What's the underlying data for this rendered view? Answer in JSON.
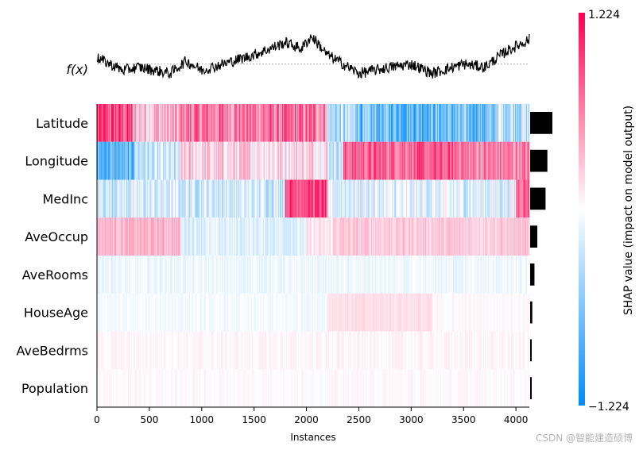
{
  "chart_data": {
    "type": "heatmap",
    "title": "",
    "xlabel": "Instances",
    "ylabel": "",
    "xlim": [
      0,
      4128
    ],
    "x_ticks": [
      0,
      500,
      1000,
      1500,
      2000,
      2500,
      3000,
      3500,
      4000
    ],
    "n_instances": 4128,
    "fx_label": "f(x)",
    "colorbar": {
      "label": "SHAP value (impact on model output)",
      "max_label": "1.224",
      "min_label": "−1.224",
      "vmin": -1.224,
      "vmax": 1.224,
      "low_color": "#008bfb",
      "high_color": "#ff0052"
    },
    "features": [
      {
        "name": "Latitude",
        "mean_abs_shap": 0.62,
        "segments": [
          [
            0,
            330,
            0.85
          ],
          [
            330,
            800,
            0.35
          ],
          [
            800,
            2200,
            0.65
          ],
          [
            2200,
            2500,
            -0.4
          ],
          [
            2500,
            3800,
            -0.7
          ],
          [
            3800,
            4128,
            -0.3
          ]
        ]
      },
      {
        "name": "Longitude",
        "mean_abs_shap": 0.48,
        "segments": [
          [
            0,
            350,
            -0.8
          ],
          [
            350,
            800,
            -0.3
          ],
          [
            800,
            2200,
            0.2
          ],
          [
            2200,
            2350,
            -0.2
          ],
          [
            2350,
            3500,
            0.75
          ],
          [
            3500,
            4128,
            0.6
          ]
        ]
      },
      {
        "name": "MedInc",
        "mean_abs_shap": 0.43,
        "segments": [
          [
            0,
            1800,
            -0.2
          ],
          [
            1800,
            2200,
            0.9
          ],
          [
            2200,
            4000,
            -0.15
          ],
          [
            4000,
            4128,
            0.8
          ]
        ]
      },
      {
        "name": "AveOccup",
        "mean_abs_shap": 0.2,
        "segments": [
          [
            0,
            800,
            0.35
          ],
          [
            800,
            2000,
            -0.15
          ],
          [
            2000,
            2250,
            0.1
          ],
          [
            2250,
            4128,
            0.25
          ]
        ]
      },
      {
        "name": "AveRooms",
        "mean_abs_shap": 0.12,
        "segments": [
          [
            0,
            4128,
            -0.08
          ]
        ]
      },
      {
        "name": "HouseAge",
        "mean_abs_shap": 0.06,
        "segments": [
          [
            0,
            2200,
            -0.05
          ],
          [
            2200,
            3200,
            0.15
          ],
          [
            3200,
            4128,
            0.02
          ]
        ]
      },
      {
        "name": "AveBedrms",
        "mean_abs_shap": 0.03,
        "segments": [
          [
            0,
            4128,
            0.04
          ]
        ]
      },
      {
        "name": "Population",
        "mean_abs_shap": 0.02,
        "segments": [
          [
            0,
            4128,
            0.02
          ]
        ]
      }
    ],
    "fx_series": [
      [
        0,
        0.1
      ],
      [
        250,
        -0.1
      ],
      [
        400,
        -0.05
      ],
      [
        700,
        -0.15
      ],
      [
        850,
        0.05
      ],
      [
        1000,
        -0.1
      ],
      [
        1200,
        0.0
      ],
      [
        1500,
        0.15
      ],
      [
        1800,
        0.35
      ],
      [
        1950,
        0.25
      ],
      [
        2050,
        0.45
      ],
      [
        2200,
        0.15
      ],
      [
        2500,
        -0.15
      ],
      [
        2800,
        -0.05
      ],
      [
        3000,
        0.0
      ],
      [
        3200,
        -0.15
      ],
      [
        3500,
        0.0
      ],
      [
        3700,
        -0.05
      ],
      [
        3900,
        0.2
      ],
      [
        4128,
        0.4
      ]
    ],
    "fx_baseline": 0.0,
    "fx_range": [
      -0.35,
      0.55
    ]
  },
  "watermark": "CSDN @智能建造硕博"
}
